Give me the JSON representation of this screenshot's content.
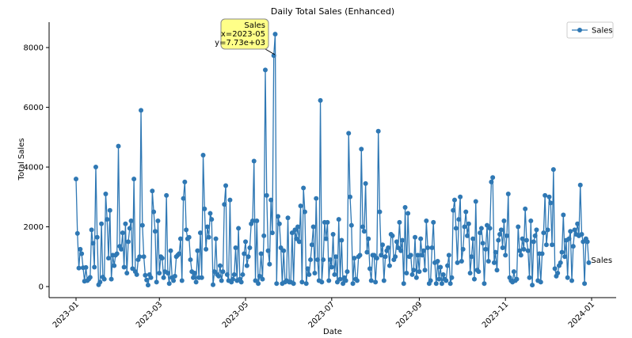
{
  "chart_data": {
    "type": "line",
    "title": "Daily Total Sales (Enhanced)",
    "x_label": "Date",
    "y_label": "Total Sales",
    "series": [
      {
        "name": "Sales",
        "color": "#2f78b4",
        "values": [
          3600,
          1780,
          620,
          1250,
          1100,
          630,
          180,
          640,
          200,
          250,
          310,
          1900,
          1450,
          650,
          4000,
          1650,
          60,
          150,
          2100,
          320,
          250,
          3100,
          2250,
          950,
          2550,
          250,
          1050,
          700,
          1050,
          1100,
          4700,
          1350,
          1250,
          1800,
          650,
          2100,
          450,
          1500,
          1950,
          2200,
          600,
          3600,
          500,
          400,
          900,
          1000,
          5900,
          2050,
          1000,
          380,
          220,
          50,
          400,
          300,
          3200,
          2500,
          1850,
          150,
          2200,
          450,
          1000,
          950,
          300,
          500,
          3050,
          450,
          100,
          1200,
          300,
          200,
          350,
          1000,
          1050,
          1100,
          1600,
          200,
          2950,
          3500,
          1900,
          1600,
          1650,
          900,
          500,
          300,
          450,
          150,
          1200,
          300,
          1800,
          300,
          4400,
          2600,
          1250,
          2000,
          1650,
          2450,
          2250,
          60,
          500,
          1600,
          400,
          350,
          700,
          200,
          500,
          2750,
          3380,
          400,
          200,
          2900,
          150,
          250,
          400,
          1300,
          200,
          1950,
          250,
          150,
          400,
          1100,
          1500,
          700,
          1000,
          1300,
          2100,
          2200,
          4200,
          200,
          2200,
          100,
          350,
          1100,
          250,
          1700,
          7250,
          3050,
          1200,
          750,
          2900,
          1800,
          7730,
          8450,
          100,
          2350,
          2100,
          1300,
          100,
          1200,
          150,
          200,
          2300,
          150,
          150,
          1800,
          100,
          1900,
          1600,
          2000,
          1500,
          2700,
          150,
          3300,
          2500,
          100,
          600,
          400,
          900,
          1400,
          2000,
          450,
          2950,
          900,
          200,
          6230,
          150,
          900,
          2150,
          1600,
          2150,
          200,
          900,
          650,
          1750,
          400,
          1000,
          150,
          2250,
          250,
          1550,
          100,
          300,
          200,
          500,
          5130,
          3000,
          2050,
          100,
          950,
          250,
          200,
          1000,
          1050,
          4600,
          2000,
          1850,
          3450,
          1150,
          1600,
          600,
          200,
          1050,
          1050,
          150,
          950,
          5200,
          2500,
          1050,
          1400,
          200,
          1000,
          1200,
          1300,
          700,
          1750,
          1700,
          900,
          1000,
          1500,
          1300,
          2150,
          1200,
          1550,
          100,
          2650,
          450,
          2450,
          1000,
          1050,
          400,
          550,
          1650,
          300,
          1050,
          500,
          1600,
          1050,
          1200,
          550,
          2200,
          1300,
          100,
          200,
          1300,
          2150,
          800,
          100,
          850,
          250,
          650,
          100,
          400,
          250,
          200,
          700,
          1050,
          100,
          300,
          2550,
          2900,
          1950,
          800,
          2250,
          3000,
          850,
          1250,
          2000,
          2500,
          1700,
          2100,
          450,
          1000,
          1600,
          250,
          2850,
          550,
          500,
          1800,
          1950,
          1450,
          100,
          1250,
          2050,
          850,
          1950,
          3500,
          3650,
          800,
          1150,
          550,
          1550,
          1750,
          1900,
          1300,
          2200,
          1050,
          1700,
          3100,
          300,
          200,
          150,
          500,
          200,
          250,
          2000,
          1200,
          1050,
          1600,
          1250,
          2600,
          1550,
          1200,
          300,
          2200,
          50,
          1500,
          1700,
          1900,
          200,
          1100,
          150,
          1100,
          1800,
          3050,
          1400,
          1900,
          3000,
          2800,
          1400,
          3920,
          600,
          350,
          450,
          700,
          800,
          1150,
          2400,
          1000,
          1550,
          300,
          1600,
          1850,
          200,
          1350,
          1900,
          1750,
          2100,
          1700,
          3400,
          1750,
          1500,
          100,
          1600,
          1500,
          800
        ]
      }
    ],
    "xticks": [
      "2023-01",
      "2023-03",
      "2023-05",
      "2023-07",
      "2023-09",
      "2023-11",
      "2024-01"
    ],
    "ylim": [
      -370,
      8850
    ],
    "yticks": [
      0,
      2000,
      4000,
      6000,
      8000
    ],
    "legend": "upper right",
    "annotation": [
      "Sales",
      "x=2023-05",
      "y=7.73e+03"
    ],
    "end_label": "Sales"
  }
}
